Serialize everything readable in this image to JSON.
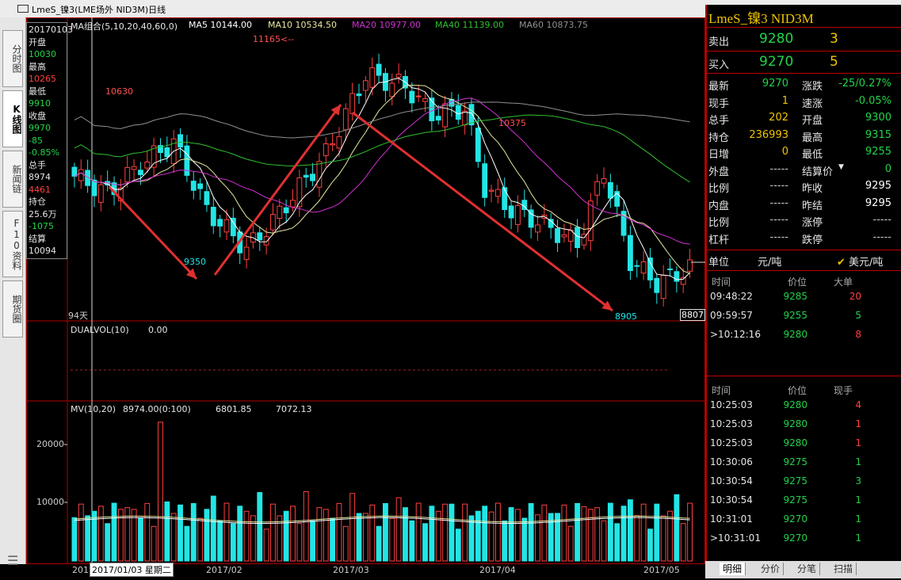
{
  "window": {
    "title": "LmeS_镍3(LME场外 NID3M)日线"
  },
  "left_tabs": [
    {
      "label": "分时图",
      "active": false
    },
    {
      "label": "K线图",
      "active": true
    },
    {
      "label": "新闻链",
      "active": false
    },
    {
      "label": "F10资料",
      "active": false
    },
    {
      "label": "期货圈",
      "active": false
    }
  ],
  "info_box": {
    "date": "20170103",
    "open_label": "开盘",
    "open": "10030",
    "high_label": "最高",
    "high": "10265",
    "low_label": "最低",
    "low": "9910",
    "close_label": "收盘",
    "close": "9970",
    "change": "-85",
    "change_pct": "-0.85%",
    "volume_label": "总手",
    "volume": "8974",
    "amount": "4461",
    "oi_label": "持仓",
    "oi": "25.6万",
    "oi_change": "-1075",
    "settle_label": "结算",
    "settle": "10094"
  },
  "ma_legend": {
    "group": "MA组合(5,10,20,40,60,0)",
    "ma5": "MA5 10144.00",
    "ma10": "MA10 10534.50",
    "ma20": "MA20 10977.00",
    "ma40": "MA40 11139.00",
    "ma60": "MA60 10873.75"
  },
  "price_annotations": {
    "peak": "11165",
    "left_high": "10630",
    "low1": "9350",
    "mid_high": "10375",
    "low2": "8905",
    "days": "94天",
    "current_box": "8807"
  },
  "dualvol": {
    "label": "DUALVOL(10)",
    "value": "0.00"
  },
  "mv": {
    "label": "MV(10,20)",
    "v1": "8974.00(0:100)",
    "v2": "6801.85",
    "v3": "7072.13",
    "tick_20000": "20000",
    "tick_10000": "10000"
  },
  "date_axis": {
    "first": "201",
    "cursor": "2017/01/03 星期二",
    "feb": "2017/02",
    "mar": "2017/03",
    "apr": "2017/04",
    "may": "2017/05"
  },
  "quote": {
    "name": "LmeS_镍3  NID3M",
    "sell_label": "卖出",
    "sell_price": "9280",
    "sell_qty": "3",
    "buy_label": "买入",
    "buy_price": "9270",
    "buy_qty": "5",
    "fields_left": [
      {
        "label": "最新",
        "value": "9270",
        "color": "#22d34a"
      },
      {
        "label": "现手",
        "value": "1",
        "color": "#f0c400"
      },
      {
        "label": "总手",
        "value": "202",
        "color": "#f0c400"
      },
      {
        "label": "持仓",
        "value": "236993",
        "color": "#f0c400"
      },
      {
        "label": "日增",
        "value": "0",
        "color": "#f0c400"
      },
      {
        "label": "外盘",
        "value": "-----",
        "color": "#c8c8c8"
      },
      {
        "label": "比例",
        "value": "-----",
        "color": "#c8c8c8"
      },
      {
        "label": "内盘",
        "value": "-----",
        "color": "#c8c8c8"
      },
      {
        "label": "比例",
        "value": "-----",
        "color": "#c8c8c8"
      },
      {
        "label": "杠杆",
        "value": "-----",
        "color": "#c8c8c8"
      }
    ],
    "fields_right": [
      {
        "label": "涨跌",
        "value": "-25/0.27%",
        "color": "#22d34a"
      },
      {
        "label": "速涨",
        "value": "-0.05%",
        "color": "#22d34a"
      },
      {
        "label": "开盘",
        "value": "9300",
        "color": "#22d34a"
      },
      {
        "label": "最高",
        "value": "9315",
        "color": "#22d34a"
      },
      {
        "label": "最低",
        "value": "9255",
        "color": "#22d34a"
      },
      {
        "label": "结算价",
        "value": "0",
        "color": "#22d34a"
      },
      {
        "label": "昨收",
        "value": "9295",
        "color": "#ffffff"
      },
      {
        "label": "昨结",
        "value": "9295",
        "color": "#ffffff"
      },
      {
        "label": "涨停",
        "value": "-----",
        "color": "#c8c8c8"
      },
      {
        "label": "跌停",
        "value": "-----",
        "color": "#c8c8c8"
      }
    ],
    "unit_label": "单位",
    "unit_cny": "元/吨",
    "unit_usd": "美元/吨"
  },
  "big_orders": {
    "headers": [
      "时间",
      "价位",
      "大单"
    ],
    "rows": [
      {
        "time": "09:48:22",
        "price": "9285",
        "qty": "20",
        "qc": "#ff4040"
      },
      {
        "time": "09:59:57",
        "price": "9255",
        "qty": "5",
        "qc": "#22d34a"
      },
      {
        "time": ">10:12:16",
        "price": "9280",
        "qty": "8",
        "qc": "#ff4040"
      }
    ]
  },
  "ticks": {
    "headers": [
      "时间",
      "价位",
      "现手"
    ],
    "rows": [
      {
        "time": "10:25:03",
        "price": "9280",
        "qty": "4",
        "qc": "#ff4040"
      },
      {
        "time": "10:25:03",
        "price": "9280",
        "qty": "1",
        "qc": "#ff4040"
      },
      {
        "time": "10:25:03",
        "price": "9280",
        "qty": "1",
        "qc": "#ff4040"
      },
      {
        "time": "10:30:06",
        "price": "9275",
        "qty": "1",
        "qc": "#22d34a"
      },
      {
        "time": "10:30:54",
        "price": "9275",
        "qty": "3",
        "qc": "#22d34a"
      },
      {
        "time": "10:30:54",
        "price": "9275",
        "qty": "1",
        "qc": "#22d34a"
      },
      {
        "time": "10:31:01",
        "price": "9270",
        "qty": "1",
        "qc": "#22d34a"
      },
      {
        "time": ">10:31:01",
        "price": "9270",
        "qty": "1",
        "qc": "#22d34a"
      }
    ]
  },
  "side_tabs": [
    "明细",
    "分价",
    "分笔",
    "扫描"
  ],
  "colors": {
    "up": "#ff4040",
    "down": "#22e5e5",
    "frame": "#b00000",
    "ma5": "#ffffff",
    "ma10": "#e8e8a0",
    "ma20": "#d030d0",
    "ma40": "#30c030",
    "ma60": "#909090",
    "arrow": "#e03030"
  }
}
